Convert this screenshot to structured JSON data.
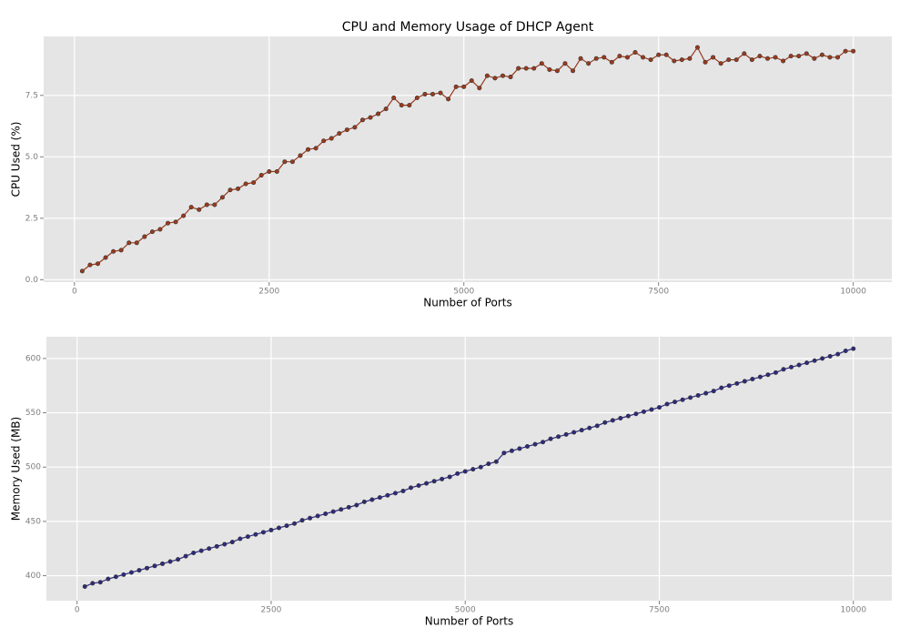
{
  "chart_data": [
    {
      "type": "line",
      "title": "CPU and Memory Usage of DHCP Agent",
      "xlabel": "Number of Ports",
      "ylabel": "CPU Used (%)",
      "x": [
        100,
        200,
        300,
        400,
        500,
        600,
        700,
        800,
        900,
        1000,
        1100,
        1200,
        1300,
        1400,
        1500,
        1600,
        1700,
        1800,
        1900,
        2000,
        2100,
        2200,
        2300,
        2400,
        2500,
        2600,
        2700,
        2800,
        2900,
        3000,
        3100,
        3200,
        3300,
        3400,
        3500,
        3600,
        3700,
        3800,
        3900,
        4000,
        4100,
        4200,
        4300,
        4400,
        4500,
        4600,
        4700,
        4800,
        4900,
        5000,
        5100,
        5200,
        5300,
        5400,
        5500,
        5600,
        5700,
        5800,
        5900,
        6000,
        6100,
        6200,
        6300,
        6400,
        6500,
        6600,
        6700,
        6800,
        6900,
        7000,
        7100,
        7200,
        7300,
        7400,
        7500,
        7600,
        7700,
        7800,
        7900,
        8000,
        8100,
        8200,
        8300,
        8400,
        8500,
        8600,
        8700,
        8800,
        8900,
        9000,
        9100,
        9200,
        9300,
        9400,
        9500,
        9600,
        9700,
        9800,
        9900,
        10000
      ],
      "values": [
        0.35,
        0.6,
        0.65,
        0.9,
        1.15,
        1.2,
        1.5,
        1.5,
        1.75,
        1.95,
        2.05,
        2.3,
        2.35,
        2.6,
        2.95,
        2.85,
        3.05,
        3.05,
        3.35,
        3.65,
        3.7,
        3.9,
        3.95,
        4.25,
        4.4,
        4.4,
        4.8,
        4.8,
        5.05,
        5.3,
        5.35,
        5.65,
        5.75,
        5.95,
        6.1,
        6.2,
        6.5,
        6.6,
        6.75,
        6.95,
        7.4,
        7.1,
        7.1,
        7.4,
        7.55,
        7.55,
        7.6,
        7.35,
        7.85,
        7.85,
        8.1,
        7.8,
        8.3,
        8.2,
        8.3,
        8.25,
        8.6,
        8.6,
        8.6,
        8.8,
        8.55,
        8.5,
        8.8,
        8.5,
        9.0,
        8.8,
        9.0,
        9.05,
        8.85,
        9.1,
        9.05,
        9.25,
        9.05,
        8.95,
        9.15,
        9.15,
        8.9,
        8.95,
        9.0,
        9.45,
        8.85,
        9.05,
        8.8,
        8.95,
        8.95,
        9.2,
        8.95,
        9.1,
        9.0,
        9.05,
        8.9,
        9.1,
        9.1,
        9.2,
        9.0,
        9.15,
        9.05,
        9.05,
        9.3,
        9.3
      ],
      "color": "#9a3a1c",
      "xlim": [
        -395,
        10495
      ],
      "xticks": [
        0,
        2500,
        5000,
        7500,
        10000
      ],
      "ylim": [
        -0.1,
        9.9
      ],
      "yticks": [
        {
          "value": 0,
          "label": "0.0"
        },
        2.5,
        {
          "value": 5,
          "label": "5.0"
        },
        7.5
      ],
      "grid": true
    },
    {
      "type": "line",
      "xlabel": "Number of Ports",
      "ylabel": "Memory Used (MB)",
      "x": [
        100,
        200,
        300,
        400,
        500,
        600,
        700,
        800,
        900,
        1000,
        1100,
        1200,
        1300,
        1400,
        1500,
        1600,
        1700,
        1800,
        1900,
        2000,
        2100,
        2200,
        2300,
        2400,
        2500,
        2600,
        2700,
        2800,
        2900,
        3000,
        3100,
        3200,
        3300,
        3400,
        3500,
        3600,
        3700,
        3800,
        3900,
        4000,
        4100,
        4200,
        4300,
        4400,
        4500,
        4600,
        4700,
        4800,
        4900,
        5000,
        5100,
        5200,
        5300,
        5400,
        5500,
        5600,
        5700,
        5800,
        5900,
        6000,
        6100,
        6200,
        6300,
        6400,
        6500,
        6600,
        6700,
        6800,
        6900,
        7000,
        7100,
        7200,
        7300,
        7400,
        7500,
        7600,
        7700,
        7800,
        7900,
        8000,
        8100,
        8200,
        8300,
        8400,
        8500,
        8600,
        8700,
        8800,
        8900,
        9000,
        9100,
        9200,
        9300,
        9400,
        9500,
        9600,
        9700,
        9800,
        9900,
        10000
      ],
      "values": [
        390,
        393,
        394,
        397,
        399,
        401,
        403,
        405,
        407,
        409,
        411,
        413,
        415,
        418,
        421,
        423,
        425,
        427,
        429,
        431,
        434,
        436,
        438,
        440,
        442,
        444,
        446,
        448,
        451,
        453,
        455,
        457,
        459,
        461,
        463,
        465,
        468,
        470,
        472,
        474,
        476,
        478,
        481,
        483,
        485,
        487,
        489,
        491,
        494,
        496,
        498,
        500,
        503,
        505,
        513,
        515,
        517,
        519,
        521,
        523,
        526,
        528,
        530,
        532,
        534,
        536,
        538,
        541,
        543,
        545,
        547,
        549,
        551,
        553,
        555,
        558,
        560,
        562,
        564,
        566,
        568,
        570,
        573,
        575,
        577,
        579,
        581,
        583,
        585,
        587,
        590,
        592,
        594,
        596,
        598,
        600,
        602,
        604,
        607,
        609
      ],
      "color": "#2e2a7c",
      "xlim": [
        -395,
        10495
      ],
      "xticks": [
        0,
        2500,
        5000,
        7500,
        10000
      ],
      "ylim": [
        377,
        620
      ],
      "yticks": [
        400,
        450,
        500,
        550,
        600
      ],
      "grid": true
    }
  ]
}
